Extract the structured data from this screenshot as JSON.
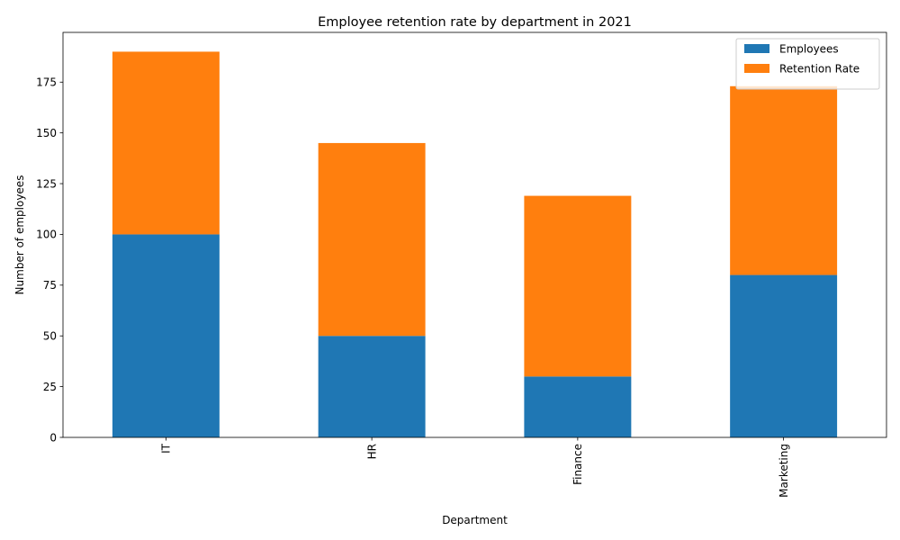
{
  "chart_data": {
    "type": "bar",
    "stacked": true,
    "title": "Employee retention rate by department in 2021",
    "xlabel": "Department",
    "ylabel": "Number of employees",
    "categories": [
      "IT",
      "HR",
      "Finance",
      "Marketing"
    ],
    "series": [
      {
        "name": "Employees",
        "values": [
          100,
          50,
          30,
          80
        ],
        "color": "#1f77b4"
      },
      {
        "name": "Retention Rate",
        "values": [
          90,
          95,
          89,
          93
        ],
        "color": "#ff7f0e"
      }
    ],
    "ylim": [
      0,
      199.5
    ],
    "yticks": [
      0,
      25,
      50,
      75,
      100,
      125,
      150,
      175
    ],
    "grid": false,
    "legend_position": "top-right"
  }
}
